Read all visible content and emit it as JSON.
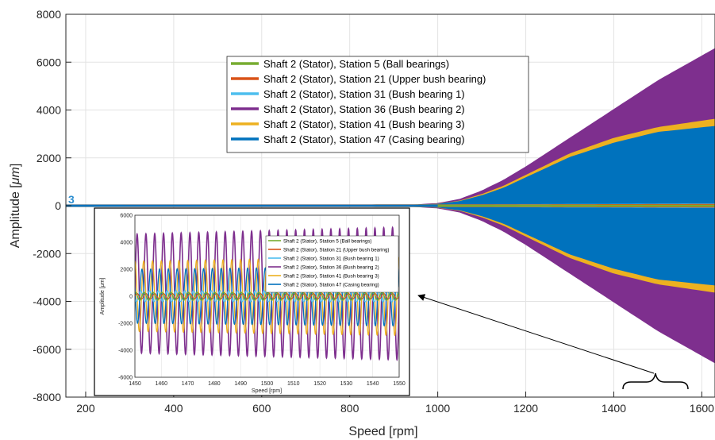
{
  "chart_data": [
    {
      "type": "line",
      "xlabel": "Speed [rpm]",
      "ylabel": "Amplitude [",
      "ylabel_unit": "μm",
      "ylabel_close": "]",
      "xlim": [
        155,
        1630
      ],
      "ylim": [
        -8000,
        8000
      ],
      "xticks": [
        200,
        400,
        600,
        800,
        1000,
        1200,
        1400,
        1600
      ],
      "yticks": [
        -8000,
        -6000,
        -4000,
        -2000,
        0,
        2000,
        4000,
        6000,
        8000
      ],
      "grid": true,
      "legend_position": "top-center",
      "start_marker": "3",
      "series": [
        {
          "name": "Shaft 2 (Stator), Station 5 (Ball bearings)",
          "color": "#77ac30",
          "envelope": [
            [
              155,
              5
            ],
            [
              1000,
              5
            ],
            [
              1630,
              5
            ]
          ]
        },
        {
          "name": "Shaft 2 (Stator), Station 21 (Upper bush bearing)",
          "color": "#d95319",
          "envelope": [
            [
              155,
              10
            ],
            [
              1000,
              20
            ],
            [
              1630,
              40
            ]
          ]
        },
        {
          "name": "Shaft 2 (Stator), Station 31 (Bush bearing 1)",
          "color": "#4dbeee",
          "envelope": [
            [
              155,
              10
            ],
            [
              1000,
              20
            ],
            [
              1630,
              60
            ]
          ]
        },
        {
          "name": "Shaft 2 (Stator), Station 36 (Bush bearing 2)",
          "color": "#7e2f8e",
          "envelope": [
            [
              155,
              20
            ],
            [
              950,
              20
            ],
            [
              1000,
              80
            ],
            [
              1050,
              250
            ],
            [
              1100,
              600
            ],
            [
              1150,
              1050
            ],
            [
              1200,
              1600
            ],
            [
              1300,
              2800
            ],
            [
              1400,
              4000
            ],
            [
              1500,
              5200
            ],
            [
              1630,
              6550
            ]
          ]
        },
        {
          "name": "Shaft 2 (Stator), Station 41 (Bush bearing 3)",
          "color": "#edb120",
          "envelope": [
            [
              155,
              15
            ],
            [
              950,
              15
            ],
            [
              1000,
              50
            ],
            [
              1050,
              180
            ],
            [
              1100,
              450
            ],
            [
              1150,
              800
            ],
            [
              1200,
              1250
            ],
            [
              1300,
              2150
            ],
            [
              1400,
              2800
            ],
            [
              1500,
              3250
            ],
            [
              1630,
              3600
            ]
          ]
        },
        {
          "name": "Shaft 2 (Stator), Station 47 (Casing bearing)",
          "color": "#0072bd",
          "envelope": [
            [
              155,
              15
            ],
            [
              950,
              15
            ],
            [
              1000,
              45
            ],
            [
              1050,
              160
            ],
            [
              1100,
              400
            ],
            [
              1150,
              720
            ],
            [
              1200,
              1150
            ],
            [
              1300,
              2000
            ],
            [
              1400,
              2600
            ],
            [
              1500,
              3050
            ],
            [
              1630,
              3300
            ]
          ]
        }
      ]
    },
    {
      "type": "line",
      "role": "inset",
      "xlabel": "Speed [rpm]",
      "ylabel": "Amplitude [",
      "ylabel_unit": "μm",
      "ylabel_close": "]",
      "xlim": [
        1450,
        1550
      ],
      "ylim": [
        -6000,
        6000
      ],
      "xticks": [
        1450,
        1460,
        1470,
        1480,
        1490,
        1500,
        1510,
        1520,
        1530,
        1540,
        1550
      ],
      "yticks": [
        -6000,
        -4000,
        -2000,
        0,
        2000,
        4000,
        6000
      ],
      "grid": true,
      "legend_position": "top-right",
      "cycles": 30,
      "series": [
        {
          "name": "Shaft 2 (Stator), Station 5 (Ball bearings)",
          "color": "#77ac30",
          "amplitude": [
            300,
            300
          ],
          "offset": 0,
          "phase": 1.2
        },
        {
          "name": "Shaft 2 (Stator), Station 21 (Upper bush bearing)",
          "color": "#d95319",
          "amplitude": [
            200,
            200
          ],
          "offset": 0,
          "phase": 2.0
        },
        {
          "name": "Shaft 2 (Stator), Station 31 (Bush bearing 1)",
          "color": "#4dbeee",
          "amplitude": [
            400,
            420
          ],
          "offset": 0,
          "phase": 0.6
        },
        {
          "name": "Shaft 2 (Stator), Station 36 (Bush bearing 2)",
          "color": "#7e2f8e",
          "amplitude": [
            4400,
            4900
          ],
          "offset": 200,
          "phase": 0
        },
        {
          "name": "Shaft 2 (Stator), Station 41 (Bush bearing 3)",
          "color": "#edb120",
          "amplitude": [
            2600,
            2900
          ],
          "offset": 0,
          "phase": 0.25
        },
        {
          "name": "Shaft 2 (Stator), Station 47 (Casing bearing)",
          "color": "#0072bd",
          "amplitude": [
            2000,
            2200
          ],
          "offset": 0,
          "phase": 0.45
        }
      ]
    }
  ]
}
